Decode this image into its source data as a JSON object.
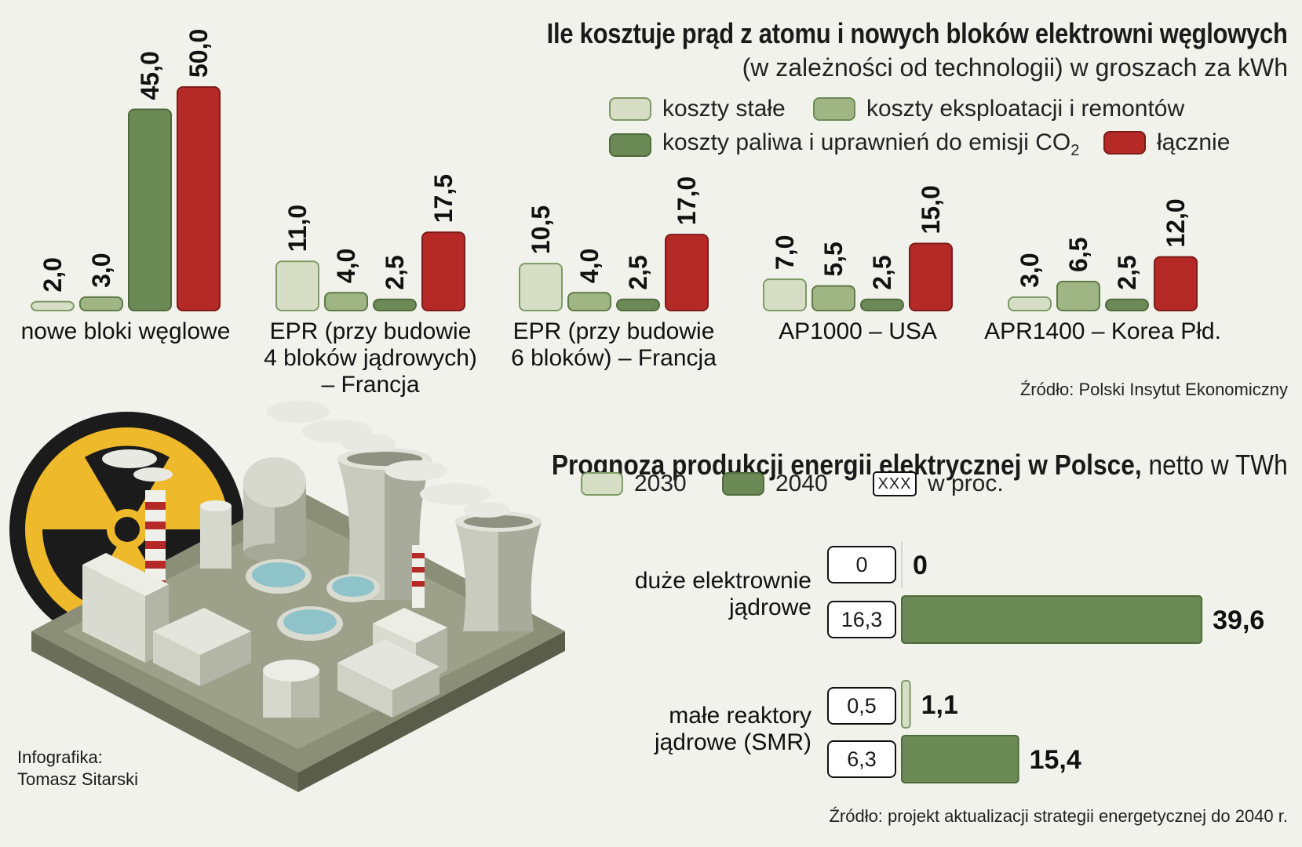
{
  "chart_data": [
    {
      "type": "bar",
      "title": "Ile kosztuje prąd z atomu i nowych bloków elektrowni węglowych",
      "subtitle": "(w zależności od technologii) w groszach za kWh",
      "categories": [
        "nowe bloki węglowe",
        "EPR (przy budowie 4 bloków jądrowych) – Francja",
        "EPR (przy budowie 6 bloków) – Francja",
        "AP1000 – USA",
        "APR1400 – Korea Płd."
      ],
      "category_lines": [
        [
          "nowe bloki węglowe"
        ],
        [
          "EPR (przy budowie",
          "4 bloków jądrowych)",
          "– Francja"
        ],
        [
          "EPR (przy budowie",
          "6 bloków) – Francja"
        ],
        [
          "AP1000 – USA"
        ],
        [
          "APR1400 – Korea Płd."
        ]
      ],
      "series": [
        {
          "name": "koszty stałe",
          "values": [
            2.0,
            11.0,
            10.5,
            7.0,
            3.0
          ],
          "labels": [
            "2,0",
            "11,0",
            "10,5",
            "7,0",
            "3,0"
          ],
          "color": "#d6dfc6"
        },
        {
          "name": "koszty eksploatacji i remontów",
          "values": [
            3.0,
            4.0,
            4.0,
            5.5,
            6.5
          ],
          "labels": [
            "3,0",
            "4,0",
            "4,0",
            "5,5",
            "6,5"
          ],
          "color": "#9fb684"
        },
        {
          "name": "koszty paliwa i uprawnień do emisji CO2",
          "values": [
            45.0,
            2.5,
            2.5,
            2.5,
            2.5
          ],
          "labels": [
            "45,0",
            "2,5",
            "2,5",
            "2,5",
            "2,5"
          ],
          "color": "#6c8a55"
        },
        {
          "name": "łącznie",
          "values": [
            50.0,
            17.5,
            17.0,
            15.0,
            12.0
          ],
          "labels": [
            "50,0",
            "17,5",
            "17,0",
            "15,0",
            "12,0"
          ],
          "color": "#b52a26"
        }
      ],
      "legend": [
        "koszty stałe",
        "koszty eksploatacji i remontów",
        "koszty paliwa i uprawnień do emisji CO2",
        "łącznie"
      ],
      "source": "Źródło: Polski Insytut Ekonomiczny"
    },
    {
      "type": "bar",
      "orientation": "horizontal",
      "title": "Prognoza produkcji energii elektrycznej w Polsce,",
      "unit_suffix": "netto w TWh",
      "categories": [
        "duże elektrownie jądrowe",
        "małe reaktory jądrowe (SMR)"
      ],
      "category_lines": [
        [
          "duże elektrownie",
          "jądrowe"
        ],
        [
          "małe reaktory",
          "jądrowe (SMR)"
        ]
      ],
      "series": [
        {
          "name": "2030",
          "values": [
            0,
            1.1
          ],
          "labels": [
            "0",
            "1,1"
          ],
          "percent": [
            "0",
            "0,5"
          ],
          "color": "#d6dfc6"
        },
        {
          "name": "2040",
          "values": [
            39.6,
            15.4
          ],
          "labels": [
            "39,6",
            "15,4"
          ],
          "percent": [
            "16,3",
            "6,3"
          ],
          "color": "#6c8a55"
        }
      ],
      "legend": [
        "2030",
        "2040",
        "w proc."
      ],
      "legend_box_text": "XXX",
      "source": "Źródło: projekt aktualizacji strategii energetycznej do 2040 r."
    }
  ],
  "credit": {
    "line1": "Infografika:",
    "line2": "Tomasz Sitarski"
  },
  "co2_sub": "2"
}
